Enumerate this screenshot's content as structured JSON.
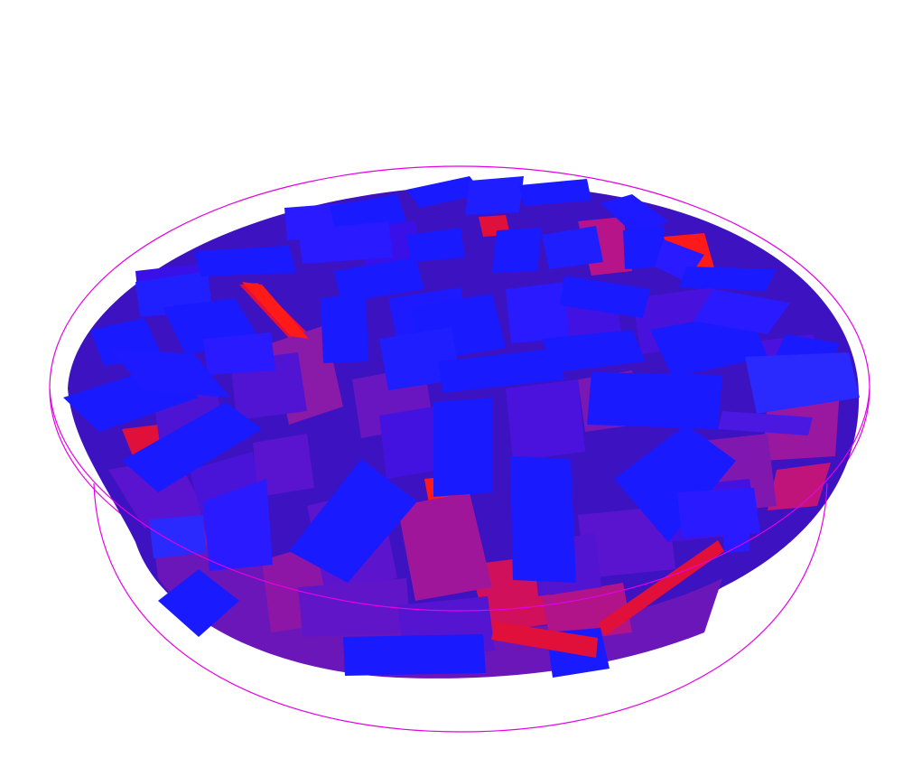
{
  "scene": {
    "background": "#ffffff",
    "container_color": "#e600e6",
    "colors": {
      "front": "#1a1aff",
      "mid": "#5a14d0",
      "deep": "#8a1aa8",
      "red": "#e0103a",
      "red_bright": "#ff1a1a"
    }
  }
}
